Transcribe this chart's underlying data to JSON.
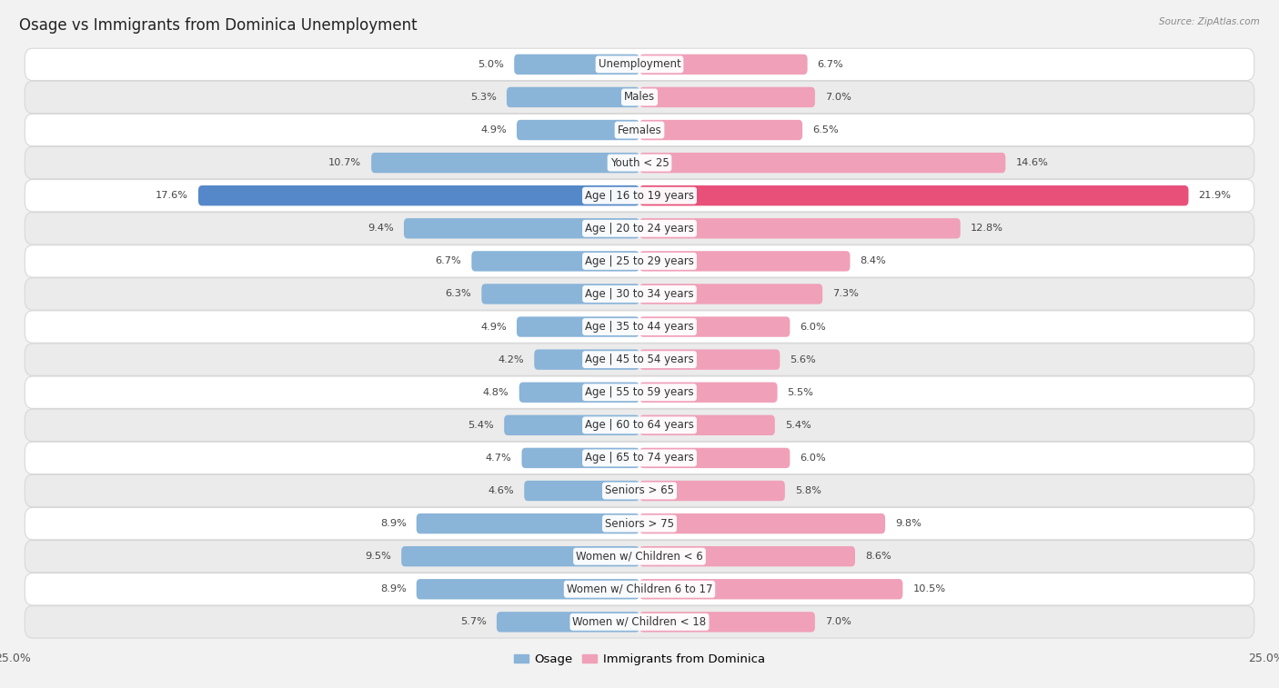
{
  "title": "Osage vs Immigrants from Dominica Unemployment",
  "source": "Source: ZipAtlas.com",
  "categories": [
    "Unemployment",
    "Males",
    "Females",
    "Youth < 25",
    "Age | 16 to 19 years",
    "Age | 20 to 24 years",
    "Age | 25 to 29 years",
    "Age | 30 to 34 years",
    "Age | 35 to 44 years",
    "Age | 45 to 54 years",
    "Age | 55 to 59 years",
    "Age | 60 to 64 years",
    "Age | 65 to 74 years",
    "Seniors > 65",
    "Seniors > 75",
    "Women w/ Children < 6",
    "Women w/ Children 6 to 17",
    "Women w/ Children < 18"
  ],
  "osage_values": [
    5.0,
    5.3,
    4.9,
    10.7,
    17.6,
    9.4,
    6.7,
    6.3,
    4.9,
    4.2,
    4.8,
    5.4,
    4.7,
    4.6,
    8.9,
    9.5,
    8.9,
    5.7
  ],
  "dominica_values": [
    6.7,
    7.0,
    6.5,
    14.6,
    21.9,
    12.8,
    8.4,
    7.3,
    6.0,
    5.6,
    5.5,
    5.4,
    6.0,
    5.8,
    9.8,
    8.6,
    10.5,
    7.0
  ],
  "osage_color": "#8ab4d8",
  "dominica_color": "#f0a0b8",
  "osage_highlight_color": "#5588c8",
  "dominica_highlight_color": "#e8507a",
  "highlight_row": 4,
  "xlim": 25.0,
  "bar_height": 0.62,
  "bg_color": "#f2f2f2",
  "row_bg_light": "#ffffff",
  "row_bg_dark": "#ebebeb",
  "row_border": "#d8d8d8",
  "label_fontsize": 8.5,
  "title_fontsize": 12,
  "value_fontsize": 8.2,
  "legend_fontsize": 9.5
}
